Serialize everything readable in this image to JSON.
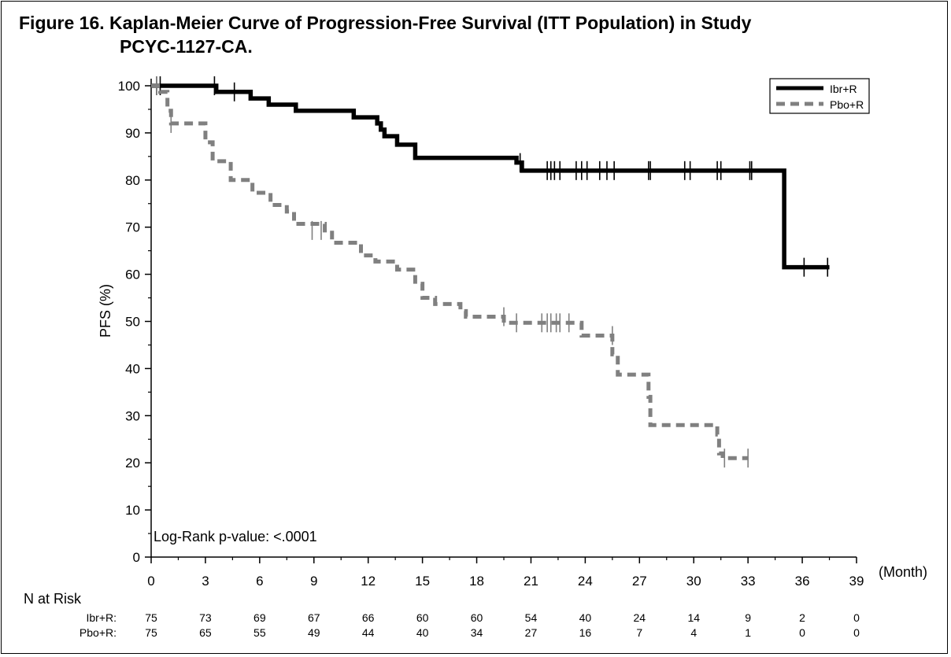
{
  "chart_data": {
    "type": "line",
    "title_line1": "Figure 16. Kaplan-Meier Curve of Progression-Free Survival (ITT Population) in Study",
    "title_line2": "PCYC-1127-CA.",
    "xlabel": "(Month)",
    "ylabel": "PFS (%)",
    "xlim": [
      0,
      39
    ],
    "ylim": [
      0,
      100
    ],
    "x_ticks": [
      0,
      3,
      6,
      9,
      12,
      15,
      18,
      21,
      24,
      27,
      30,
      33,
      36,
      39
    ],
    "y_ticks": [
      0,
      10,
      20,
      30,
      40,
      50,
      60,
      70,
      80,
      90,
      100
    ],
    "legend_position": "top-right",
    "annotation": "Log-Rank p-value: <.0001",
    "series": [
      {
        "name": "Ibr+R",
        "color": "#000000",
        "style": "solid",
        "steps": [
          [
            0,
            100
          ],
          [
            3.6,
            98.7
          ],
          [
            5.5,
            97.3
          ],
          [
            6.5,
            96
          ],
          [
            8,
            94.7
          ],
          [
            11.2,
            93.3
          ],
          [
            12.5,
            92
          ],
          [
            12.7,
            90.7
          ],
          [
            12.9,
            89.3
          ],
          [
            13.6,
            87.5
          ],
          [
            14.6,
            84.7
          ],
          [
            20.2,
            83.7
          ],
          [
            20.5,
            82
          ],
          [
            35,
            61.5
          ],
          [
            37.5,
            61.5
          ]
        ],
        "censors": [
          [
            0.3,
            100
          ],
          [
            0.5,
            100
          ],
          [
            3.5,
            100
          ],
          [
            4.6,
            98.7
          ],
          [
            20.4,
            83.7
          ],
          [
            21.9,
            82
          ],
          [
            22.1,
            82
          ],
          [
            22.3,
            82
          ],
          [
            22.6,
            82
          ],
          [
            23.5,
            82
          ],
          [
            23.8,
            82
          ],
          [
            24.1,
            82
          ],
          [
            24.8,
            82
          ],
          [
            25.2,
            82
          ],
          [
            25.6,
            82
          ],
          [
            27.5,
            82
          ],
          [
            27.6,
            82
          ],
          [
            29.5,
            82
          ],
          [
            29.8,
            82
          ],
          [
            31.3,
            82
          ],
          [
            31.5,
            82
          ],
          [
            33.1,
            82
          ],
          [
            33.2,
            82
          ],
          [
            36.1,
            61.5
          ],
          [
            37.4,
            61.5
          ]
        ]
      },
      {
        "name": "Pbo+R",
        "color": "#808080",
        "style": "dashed",
        "steps": [
          [
            0,
            100
          ],
          [
            0.5,
            98.7
          ],
          [
            0.9,
            94.7
          ],
          [
            1.1,
            92
          ],
          [
            3,
            88
          ],
          [
            3.4,
            84
          ],
          [
            4.4,
            80
          ],
          [
            5.6,
            77.3
          ],
          [
            6.6,
            74.7
          ],
          [
            7.5,
            73.3
          ],
          [
            7.9,
            70.7
          ],
          [
            9.6,
            69.3
          ],
          [
            10,
            66.7
          ],
          [
            11.6,
            64
          ],
          [
            12.4,
            62.7
          ],
          [
            13.6,
            61
          ],
          [
            14.6,
            58
          ],
          [
            15,
            55
          ],
          [
            15.7,
            53.7
          ],
          [
            17.1,
            52.2
          ],
          [
            17.4,
            51
          ],
          [
            19.5,
            49.7
          ],
          [
            23.8,
            47
          ],
          [
            25.5,
            43
          ],
          [
            25.8,
            38.7
          ],
          [
            27.5,
            34
          ],
          [
            27.6,
            28
          ],
          [
            31.3,
            26
          ],
          [
            31.4,
            22
          ],
          [
            31.6,
            21
          ],
          [
            33,
            21
          ]
        ],
        "censors": [
          [
            0.3,
            100
          ],
          [
            1.1,
            92
          ],
          [
            8.9,
            69.3
          ],
          [
            9.4,
            69.3
          ],
          [
            19.5,
            51
          ],
          [
            20.2,
            49.7
          ],
          [
            21.6,
            49.7
          ],
          [
            21.9,
            49.7
          ],
          [
            22.1,
            49.7
          ],
          [
            22.4,
            49.7
          ],
          [
            22.6,
            49.7
          ],
          [
            23.1,
            49.7
          ],
          [
            25.5,
            47
          ],
          [
            31.7,
            21
          ],
          [
            33,
            21
          ]
        ]
      }
    ],
    "n_at_risk": {
      "header": "N at Risk",
      "months": [
        0,
        3,
        6,
        9,
        12,
        15,
        18,
        21,
        24,
        27,
        30,
        33,
        36,
        39
      ],
      "rows": [
        {
          "label": "Ibr+R:",
          "values": [
            "75",
            "73",
            "69",
            "67",
            "66",
            "60",
            "60",
            "54",
            "40",
            "24",
            "14",
            "9",
            "2",
            "0"
          ]
        },
        {
          "label": "Pbo+R:",
          "values": [
            "75",
            "65",
            "55",
            "49",
            "44",
            "40",
            "34",
            "27",
            "16",
            "7",
            "4",
            "1",
            "0",
            "0"
          ]
        }
      ]
    }
  }
}
